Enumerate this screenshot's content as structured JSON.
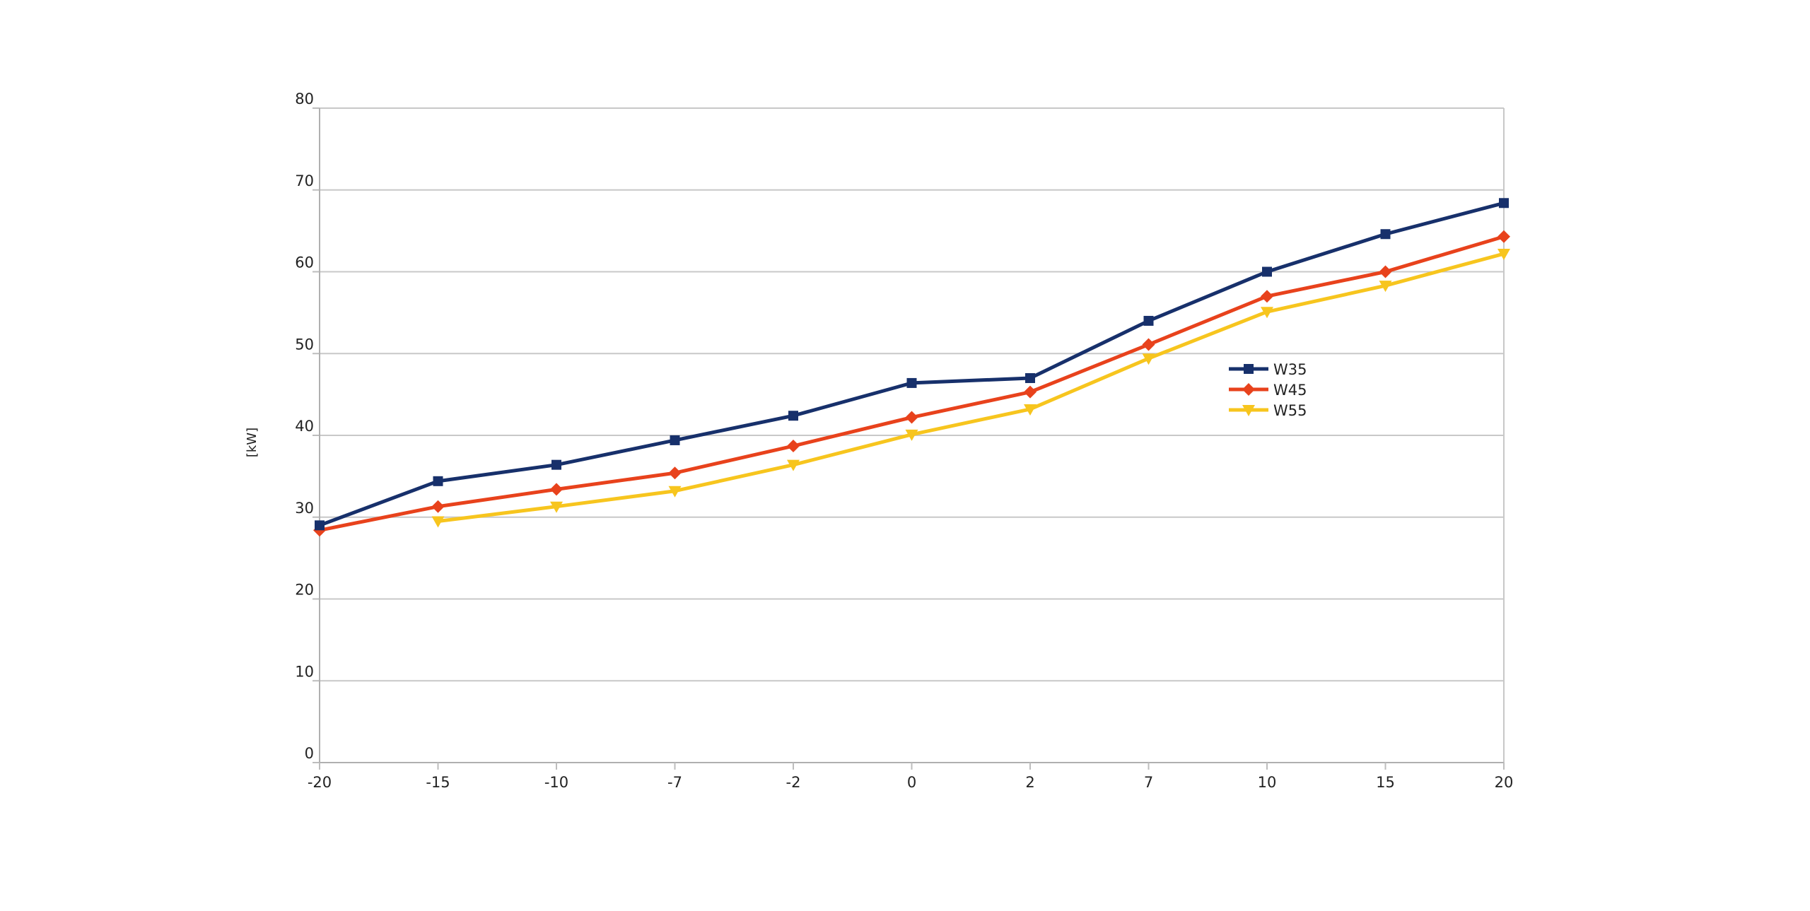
{
  "chart_data": {
    "type": "line",
    "title": "",
    "xlabel": "",
    "ylabel": "[kW]",
    "categories": [
      "-20",
      "-15",
      "-10",
      "-7",
      "-2",
      "0",
      "2",
      "7",
      "10",
      "15",
      "20"
    ],
    "ylim": [
      0,
      80
    ],
    "yticks": [
      0,
      10,
      20,
      30,
      40,
      50,
      60,
      70,
      80
    ],
    "grid": true,
    "legend_position": "right-middle",
    "series": [
      {
        "name": "W35",
        "color": "#17306b",
        "marker": "square",
        "values": [
          29.0,
          34.4,
          36.4,
          39.4,
          42.4,
          46.4,
          47.0,
          54.0,
          60.0,
          64.6,
          68.4
        ]
      },
      {
        "name": "W45",
        "color": "#e8421c",
        "marker": "diamond",
        "values": [
          28.4,
          31.3,
          33.4,
          35.4,
          38.7,
          42.2,
          45.3,
          51.1,
          57.0,
          60.0,
          64.3
        ]
      },
      {
        "name": "W55",
        "color": "#f7c51e",
        "marker": "triangle-down",
        "values": [
          null,
          29.5,
          31.3,
          33.2,
          36.4,
          40.1,
          43.2,
          49.4,
          55.1,
          58.3,
          62.2
        ]
      }
    ]
  }
}
